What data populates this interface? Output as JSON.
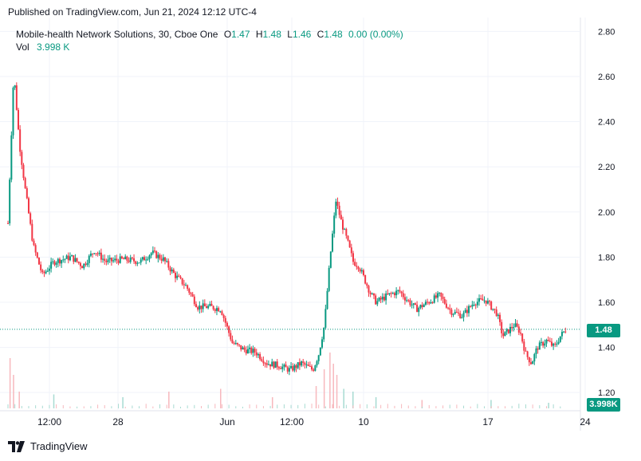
{
  "header": {
    "published": "Published on TradingView.com, Jun 21, 2024 12:12 UTC-4"
  },
  "legend": {
    "symbol": "Mobile-health Network Solutions, 30, Cboe One",
    "o_label": "O",
    "o_value": "1.47",
    "h_label": "H",
    "h_value": "1.48",
    "l_label": "L",
    "l_value": "1.46",
    "c_label": "C",
    "c_value": "1.48",
    "change": "0.00 (0.00%)",
    "vol_label": "Vol",
    "vol_value": "3.998 K"
  },
  "tags": {
    "last_price": "1.48",
    "last_volume": "3.998K"
  },
  "footer": {
    "brand": "TradingView"
  },
  "colors": {
    "up": "#089981",
    "down": "#f23645",
    "grid": "#f0f3fa",
    "text": "#131722"
  },
  "chart_data": {
    "type": "candlestick",
    "y_ticks": [
      "2.80",
      "2.60",
      "2.40",
      "2.20",
      "2.00",
      "1.80",
      "1.60",
      "1.40",
      "1.20"
    ],
    "ylim": [
      1.13,
      2.84
    ],
    "x_ticks": [
      "12:00",
      "28",
      "Jun",
      "12:00",
      "10",
      "17",
      "24"
    ],
    "last_close": 1.48,
    "price_path": [
      [
        0,
        1.95
      ],
      [
        5,
        2.62
      ],
      [
        10,
        2.3
      ],
      [
        15,
        2.1
      ],
      [
        22,
        1.85
      ],
      [
        30,
        1.72
      ],
      [
        40,
        1.78
      ],
      [
        55,
        1.8
      ],
      [
        65,
        1.76
      ],
      [
        75,
        1.83
      ],
      [
        85,
        1.78
      ],
      [
        100,
        1.79
      ],
      [
        115,
        1.78
      ],
      [
        125,
        1.82
      ],
      [
        135,
        1.79
      ],
      [
        145,
        1.72
      ],
      [
        155,
        1.67
      ],
      [
        165,
        1.58
      ],
      [
        175,
        1.58
      ],
      [
        185,
        1.57
      ],
      [
        195,
        1.42
      ],
      [
        205,
        1.39
      ],
      [
        215,
        1.38
      ],
      [
        225,
        1.33
      ],
      [
        235,
        1.32
      ],
      [
        245,
        1.3
      ],
      [
        255,
        1.33
      ],
      [
        265,
        1.3
      ],
      [
        270,
        1.37
      ],
      [
        275,
        1.5
      ],
      [
        280,
        1.8
      ],
      [
        285,
        2.05
      ],
      [
        290,
        1.95
      ],
      [
        295,
        1.87
      ],
      [
        300,
        1.78
      ],
      [
        305,
        1.76
      ],
      [
        310,
        1.7
      ],
      [
        315,
        1.64
      ],
      [
        320,
        1.6
      ],
      [
        330,
        1.63
      ],
      [
        340,
        1.65
      ],
      [
        345,
        1.62
      ],
      [
        355,
        1.57
      ],
      [
        365,
        1.6
      ],
      [
        375,
        1.63
      ],
      [
        385,
        1.56
      ],
      [
        395,
        1.54
      ],
      [
        405,
        1.6
      ],
      [
        415,
        1.61
      ],
      [
        425,
        1.55
      ],
      [
        430,
        1.45
      ],
      [
        440,
        1.5
      ],
      [
        445,
        1.47
      ],
      [
        450,
        1.37
      ],
      [
        455,
        1.33
      ],
      [
        460,
        1.4
      ],
      [
        468,
        1.43
      ],
      [
        475,
        1.4
      ],
      [
        480,
        1.45
      ],
      [
        485,
        1.48
      ]
    ],
    "volume_spikes": [
      [
        2,
        0.9
      ],
      [
        5,
        0.6
      ],
      [
        10,
        0.3
      ],
      [
        40,
        0.25
      ],
      [
        100,
        0.2
      ],
      [
        140,
        0.3
      ],
      [
        185,
        0.35
      ],
      [
        230,
        0.2
      ],
      [
        268,
        0.4
      ],
      [
        275,
        0.7
      ],
      [
        280,
        1.0
      ],
      [
        283,
        0.8
      ],
      [
        286,
        0.6
      ],
      [
        292,
        0.35
      ],
      [
        300,
        0.3
      ],
      [
        320,
        0.2
      ],
      [
        360,
        0.15
      ],
      [
        420,
        0.15
      ],
      [
        470,
        0.1
      ]
    ]
  }
}
